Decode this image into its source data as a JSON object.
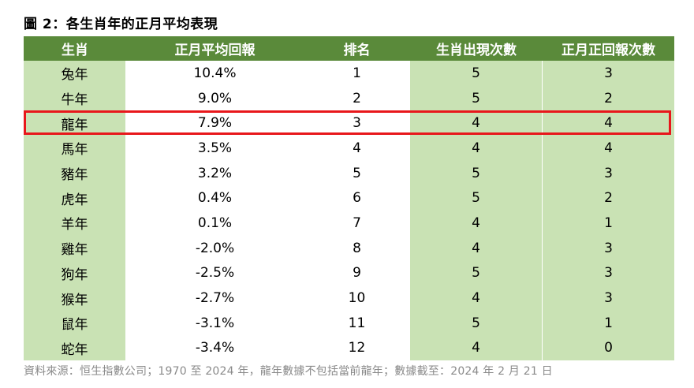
{
  "title": "圖 2：各生肖年的正月平均表現",
  "headers": [
    "生肖",
    "正月平均回報",
    "排名",
    "生肖出現次數",
    "正月正回報次數"
  ],
  "rows": [
    [
      "兔年",
      "10.4%",
      "1",
      "5",
      "3"
    ],
    [
      "牛年",
      "9.0%",
      "2",
      "5",
      "2"
    ],
    [
      "龍年",
      "7.9%",
      "3",
      "4",
      "4"
    ],
    [
      "馬年",
      "3.5%",
      "4",
      "4",
      "4"
    ],
    [
      "豬年",
      "3.2%",
      "5",
      "5",
      "3"
    ],
    [
      "虎年",
      "0.4%",
      "6",
      "5",
      "2"
    ],
    [
      "羊年",
      "0.1%",
      "7",
      "4",
      "1"
    ],
    [
      "雞年",
      "-2.0%",
      "8",
      "4",
      "3"
    ],
    [
      "狗年",
      "-2.5%",
      "9",
      "5",
      "3"
    ],
    [
      "猴年",
      "-2.7%",
      "10",
      "4",
      "3"
    ],
    [
      "鼠年",
      "-3.1%",
      "11",
      "5",
      "1"
    ],
    [
      "蛇年",
      "-3.4%",
      "12",
      "4",
      "0"
    ]
  ],
  "highlighted_row": "龍年",
  "source": "資料來源：恒生指數公司；1970 至 2024 年，龍年數據不包括當前龍年；數據截至：2024 年 2 月 21 日",
  "colors": {
    "header": "#5a8a3a",
    "green_cell": "#c9e2b4",
    "highlight": "#e8171b"
  }
}
